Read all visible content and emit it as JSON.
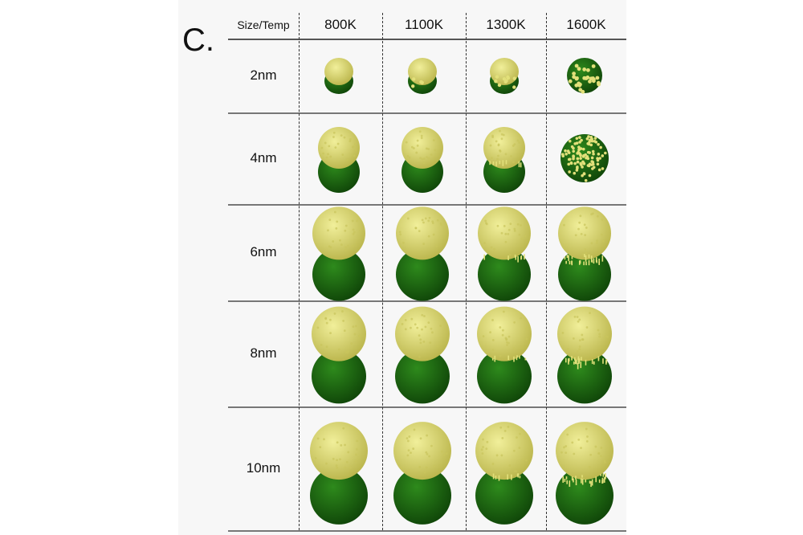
{
  "figure": {
    "panel_label": "C.",
    "corner_header": "Size/Temp",
    "temperatures": [
      "800K",
      "1100K",
      "1300K",
      "1600K"
    ],
    "sizes": [
      "2nm",
      "4nm",
      "6nm",
      "8nm",
      "10nm"
    ],
    "colors": {
      "yellow_phase": "#e2e07a",
      "yellow_phase_dark": "#b9b44a",
      "green_phase": "#1f6b12",
      "green_phase_dark": "#0f4408"
    },
    "cell_image": "Janus nanoparticle rendering: yellow hemisphere on top of green hemisphere; at 1600K the two phases intermix (small sizes fully mixed)"
  }
}
